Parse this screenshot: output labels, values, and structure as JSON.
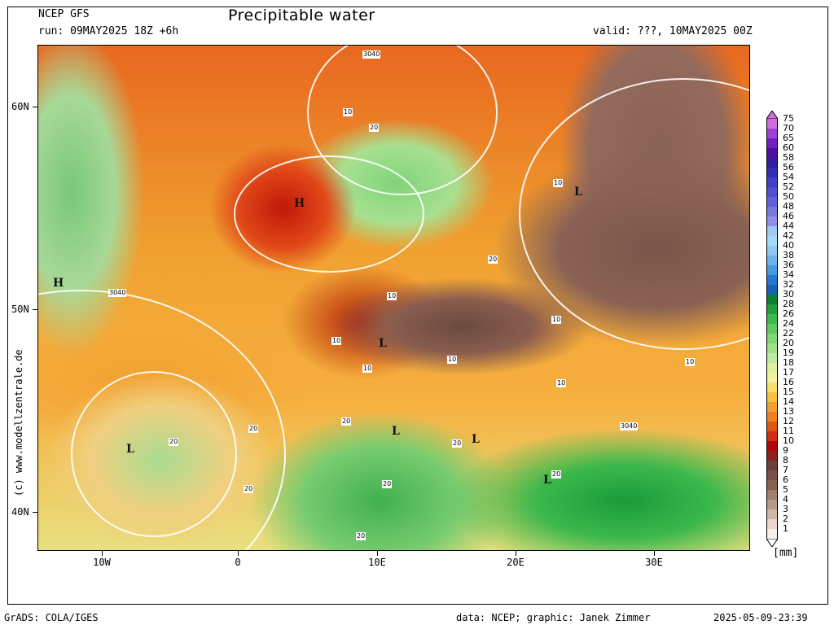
{
  "header": {
    "model": "NCEP GFS",
    "run": "run: 09MAY2025 18Z +6h",
    "title": "Precipitable water",
    "valid": "valid: ???, 10MAY2025 00Z"
  },
  "axes": {
    "lat_labels": [
      "60N",
      "50N",
      "40N"
    ],
    "lon_labels": [
      "10W",
      "0",
      "10E",
      "20E",
      "30E"
    ]
  },
  "credit": "(c) www.modellzentrale.de",
  "colorbar": {
    "unit": "[mm]",
    "labels": [
      "75",
      "70",
      "65",
      "60",
      "58",
      "56",
      "54",
      "52",
      "50",
      "48",
      "46",
      "44",
      "42",
      "40",
      "38",
      "36",
      "34",
      "32",
      "30",
      "28",
      "26",
      "24",
      "22",
      "20",
      "19",
      "18",
      "17",
      "16",
      "15",
      "14",
      "13",
      "12",
      "11",
      "10",
      "9",
      "8",
      "7",
      "6",
      "5",
      "4",
      "3",
      "2",
      "1"
    ],
    "colors": [
      "#d070e0",
      "#a040d0",
      "#7020c0",
      "#5010a0",
      "#3020a0",
      "#3030b8",
      "#4040c8",
      "#5050d0",
      "#6060d8",
      "#7878e0",
      "#9090e8",
      "#a0c8f0",
      "#a8d8f8",
      "#90c8f0",
      "#70b0e8",
      "#4898e0",
      "#2878d0",
      "#1860b8",
      "#0a8030",
      "#20a040",
      "#40b850",
      "#60c860",
      "#80d870",
      "#a0e088",
      "#c0e8a0",
      "#e0f0a0",
      "#f0f0a0",
      "#f8e070",
      "#f8c040",
      "#f0a030",
      "#f08020",
      "#e05810",
      "#d03010",
      "#b00808",
      "#8a2020",
      "#6a4038",
      "#7a5048",
      "#8a6050",
      "#a08070",
      "#b89888",
      "#d0b8a8",
      "#e8d8d0",
      "#f8f0ec"
    ]
  },
  "map": {
    "contour_labels": [
      "3040",
      "3040",
      "3040",
      "10",
      "20",
      "10",
      "20",
      "10",
      "10",
      "10",
      "10",
      "10",
      "10",
      "10",
      "20",
      "20",
      "20",
      "20",
      "20",
      "20",
      "20",
      "20"
    ],
    "pressure_centers": [
      "H",
      "H",
      "L",
      "L",
      "L",
      "L",
      "L",
      "L"
    ]
  },
  "footer": {
    "left": "GrADS: COLA/IGES",
    "center": "data: NCEP; graphic: Janek Zimmer",
    "right": "2025-05-09-23:39"
  }
}
